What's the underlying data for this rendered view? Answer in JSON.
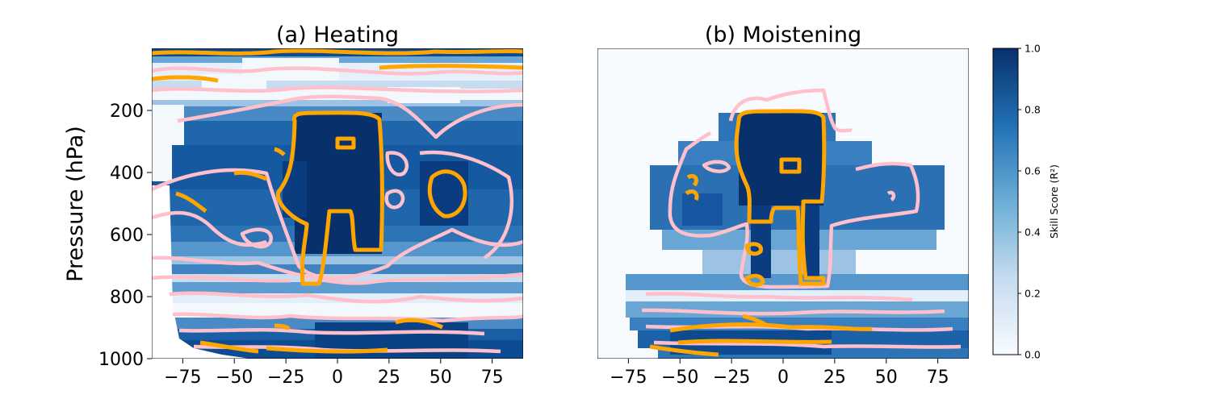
{
  "chart_data": [
    {
      "type": "heatmap",
      "title": "(a) Heating",
      "xlabel": "",
      "ylabel": "Pressure (hPa)",
      "xlim": [
        -90,
        90
      ],
      "ylim": [
        1000,
        0
      ],
      "xticks": [
        -75,
        -50,
        -25,
        0,
        25,
        50,
        75
      ],
      "yticks": [
        200,
        400,
        600,
        800,
        1000
      ],
      "colormap": "Blues",
      "contours": [
        {
          "level": 0.7,
          "color": "#ffc0cb"
        },
        {
          "level": 0.9,
          "color": "#ffa500"
        }
      ]
    },
    {
      "type": "heatmap",
      "title": "(b) Moistening",
      "xlabel": "",
      "ylabel": "",
      "xlim": [
        -90,
        90
      ],
      "ylim": [
        1000,
        0
      ],
      "xticks": [
        -75,
        -50,
        -25,
        0,
        25,
        50,
        75
      ],
      "yticks": [],
      "colormap": "Blues",
      "contours": [
        {
          "level": 0.7,
          "color": "#ffc0cb"
        },
        {
          "level": 0.9,
          "color": "#ffa500"
        }
      ]
    }
  ],
  "colorbar": {
    "label": "Skill Score (R²)",
    "range": [
      0.0,
      1.0
    ],
    "ticks": [
      "0.0",
      "0.2",
      "0.4",
      "0.6",
      "0.8",
      "1.0"
    ],
    "color_low": "#f7fbff",
    "color_high": "#08306b"
  },
  "colors": {
    "contour_high": "#ffa500",
    "contour_mid": "#ffc0cb"
  }
}
